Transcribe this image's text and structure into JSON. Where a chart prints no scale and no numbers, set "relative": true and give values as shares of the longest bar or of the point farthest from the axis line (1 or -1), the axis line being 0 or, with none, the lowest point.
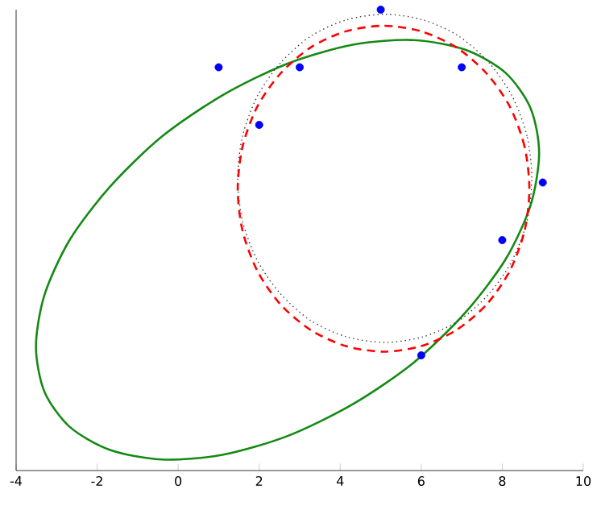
{
  "chart_data": {
    "type": "scatter",
    "relative": true,
    "xlim": [
      -4,
      10
    ],
    "xticks": [
      -4,
      -2,
      0,
      2,
      4,
      6,
      8,
      10
    ],
    "series": [
      {
        "color": "#0000ff",
        "marker": "circle",
        "x": [
          1,
          2,
          3,
          5,
          7,
          9,
          8,
          6
        ],
        "values": [
          0.875,
          0.75,
          0.875,
          1,
          0.875,
          0.625,
          0.5,
          0.25
        ]
      }
    ]
  }
}
